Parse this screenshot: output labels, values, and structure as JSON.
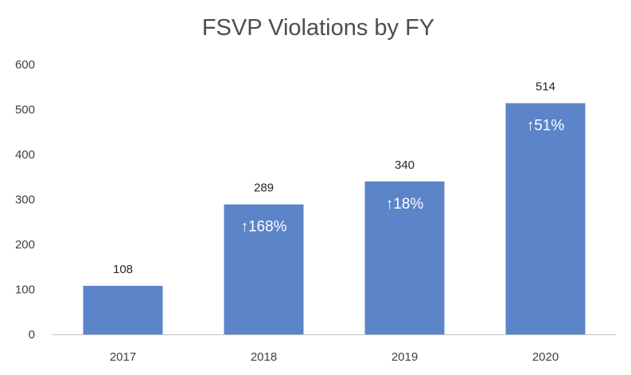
{
  "chart_data": {
    "type": "bar",
    "title": "FSVP Violations by FY",
    "xlabel": "",
    "ylabel": "",
    "categories": [
      "2017",
      "2018",
      "2019",
      "2020"
    ],
    "values": [
      108,
      289,
      340,
      514
    ],
    "data_labels": [
      "108",
      "289",
      "340",
      "514"
    ],
    "annotations": [
      "",
      "↑168%",
      "↑18%",
      "↑51%"
    ],
    "ylim": [
      0,
      600
    ],
    "yticks": [
      0,
      100,
      200,
      300,
      400,
      500,
      600
    ],
    "ytick_labels": [
      "0",
      "100",
      "200",
      "300",
      "400",
      "500",
      "600"
    ],
    "grid": false,
    "legend": "none",
    "bar_color": "#5b84c9"
  }
}
